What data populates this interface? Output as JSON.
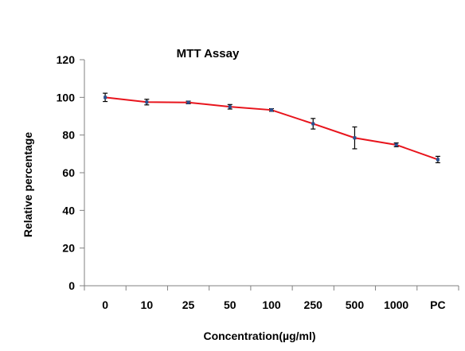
{
  "chart_data": {
    "type": "line",
    "title": "MTT Assay",
    "xlabel": "Concentration(µg/ml)",
    "ylabel": "Relative percentage",
    "categories": [
      "0",
      "10",
      "25",
      "50",
      "100",
      "250",
      "500",
      "1000",
      "PC"
    ],
    "series": [
      {
        "values": [
          100,
          97.5,
          97.3,
          95,
          93.3,
          86,
          78.5,
          74.8,
          67
        ],
        "errors": [
          2.2,
          1.5,
          0.7,
          1.2,
          0.7,
          2.8,
          5.8,
          1.0,
          1.7
        ],
        "color": "#e8141c"
      }
    ],
    "ylim": [
      0,
      120
    ],
    "yticks": [
      0,
      20,
      40,
      60,
      80,
      100,
      120
    ],
    "grid": false,
    "legend": "none",
    "error_bar_color": "#000000"
  }
}
